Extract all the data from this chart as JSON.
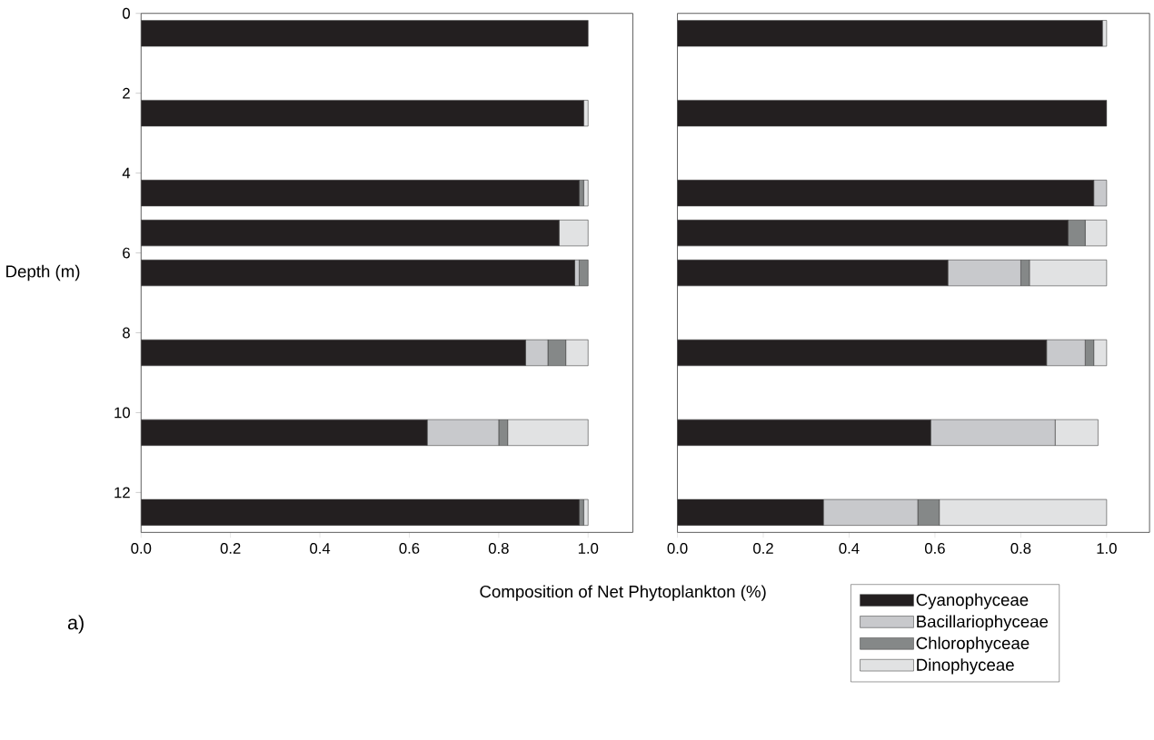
{
  "chart_data": [
    {
      "type": "bar",
      "orientation": "horizontal",
      "stacked": true,
      "ylabel": "Depth (m)",
      "xlabel": "Composition of Net Phytoplankton (%)",
      "annotations": [
        "a)"
      ],
      "x": [
        0.5,
        2.5,
        4.5,
        5.5,
        6.5,
        8.5,
        10.5,
        12.5
      ],
      "series": [
        {
          "color": "#231f20",
          "values": [
            1.0,
            0.99,
            0.98,
            0.935,
            0.97,
            0.86,
            0.64,
            0.98
          ]
        },
        {
          "color": "#c8c9cc",
          "values": [
            0,
            0,
            0,
            0,
            0.01,
            0.05,
            0.16,
            0
          ]
        },
        {
          "color": "#858888",
          "values": [
            0,
            0,
            0.01,
            0,
            0.02,
            0.04,
            0.02,
            0.01
          ]
        },
        {
          "color": "#e1e2e3",
          "values": [
            0,
            0.01,
            0.01,
            0.065,
            0,
            0.05,
            0.18,
            0.01
          ]
        }
      ],
      "xlim": [
        0,
        1.1
      ],
      "xticks": [
        {
          "value": 0,
          "label": "0.0"
        },
        {
          "value": 0.2,
          "label": "0.2"
        },
        {
          "value": 0.4,
          "label": "0.4"
        },
        {
          "value": 0.6,
          "label": "0.6"
        },
        {
          "value": 0.8,
          "label": "0.8"
        },
        {
          "value": 1.0,
          "label": "1.0"
        }
      ],
      "ylim": [
        13,
        0
      ],
      "yticks": [
        0,
        2,
        4,
        6,
        8,
        10,
        12
      ]
    },
    {
      "type": "bar",
      "orientation": "horizontal",
      "stacked": true,
      "legend": "bottom right",
      "tick_labels": "x",
      "x": [
        0.5,
        2.5,
        4.5,
        5.5,
        6.5,
        8.5,
        10.5,
        12.5
      ],
      "series": [
        {
          "name": "Cyanophyceae",
          "color": "#231f20",
          "values": [
            0.99,
            1.0,
            0.97,
            0.91,
            0.63,
            0.86,
            0.59,
            0.34
          ]
        },
        {
          "name": "Bacillariophyceae",
          "color": "#c8c9cc",
          "values": [
            0,
            0,
            0.03,
            0,
            0.17,
            0.09,
            0.29,
            0.22
          ]
        },
        {
          "name": "Chlorophyceae",
          "color": "#858888",
          "values": [
            0,
            0,
            0,
            0.04,
            0.02,
            0.02,
            0,
            0.05
          ]
        },
        {
          "name": "Dinophyceae",
          "color": "#e1e2e3",
          "values": [
            0.01,
            0,
            0,
            0.05,
            0.18,
            0.03,
            0.1,
            0.39
          ]
        }
      ],
      "xlim": [
        0,
        1.1
      ],
      "xticks": [
        {
          "value": 0,
          "label": "0.0"
        },
        {
          "value": 0.2,
          "label": "0.2"
        },
        {
          "value": 0.4,
          "label": "0.4"
        },
        {
          "value": 0.6,
          "label": "0.6"
        },
        {
          "value": 0.8,
          "label": "0.8"
        },
        {
          "value": 1.0,
          "label": "1.0"
        }
      ],
      "ylim": [
        13,
        0
      ],
      "yticks": [
        0,
        2,
        4,
        6,
        8,
        10,
        12
      ]
    }
  ]
}
